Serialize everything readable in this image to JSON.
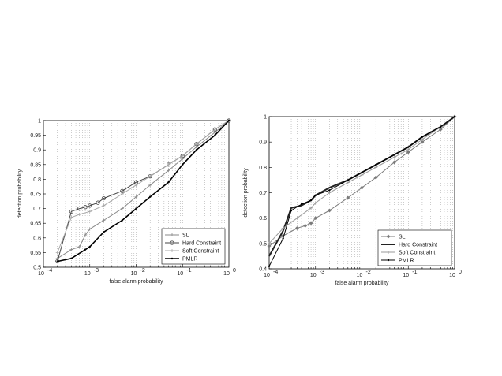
{
  "chart_data": [
    {
      "type": "line",
      "xscale": "log",
      "xlim": [
        0.0001,
        1
      ],
      "ylim": [
        0.5,
        1
      ],
      "xlabel": "false alarm probability",
      "ylabel": "detection probability",
      "x_ticks": [
        0.0001,
        0.001,
        0.01,
        0.1,
        1
      ],
      "x_tick_exponents": [
        "-4",
        "-3",
        "-2",
        "-1",
        "0"
      ],
      "y_ticks": [
        "0.5",
        "0.55",
        "0.6",
        "0.65",
        "0.7",
        "0.75",
        "0.8",
        "0.85",
        "0.9",
        "0.95",
        "1"
      ],
      "grid": "vertical minor",
      "legend": "bottom-right",
      "series": [
        {
          "name": "SL",
          "color": "#8a8a8a",
          "width": 1,
          "marker": "plus",
          "points": [
            [
              0.0002,
              0.53
            ],
            [
              0.0004,
              0.56
            ],
            [
              0.0006,
              0.57
            ],
            [
              0.0008,
              0.61
            ],
            [
              0.001,
              0.63
            ],
            [
              0.002,
              0.66
            ],
            [
              0.005,
              0.7
            ],
            [
              0.01,
              0.74
            ],
            [
              0.02,
              0.78
            ],
            [
              0.05,
              0.83
            ],
            [
              0.1,
              0.87
            ],
            [
              0.2,
              0.91
            ],
            [
              0.5,
              0.96
            ],
            [
              1,
              1
            ]
          ]
        },
        {
          "name": "Hard Constraint",
          "color": "#444444",
          "width": 1,
          "marker": "circle",
          "points": [
            [
              0.0002,
              0.52
            ],
            [
              0.0004,
              0.69
            ],
            [
              0.0006,
              0.7
            ],
            [
              0.0008,
              0.705
            ],
            [
              0.001,
              0.71
            ],
            [
              0.0015,
              0.72
            ],
            [
              0.002,
              0.735
            ],
            [
              0.005,
              0.76
            ],
            [
              0.01,
              0.79
            ],
            [
              0.02,
              0.81
            ],
            [
              0.05,
              0.85
            ],
            [
              0.1,
              0.88
            ],
            [
              0.2,
              0.92
            ],
            [
              0.5,
              0.97
            ],
            [
              1,
              1
            ]
          ]
        },
        {
          "name": "Soft Constraint",
          "color": "#a8a8a8",
          "width": 1,
          "marker": "plus",
          "points": [
            [
              0.0002,
              0.55
            ],
            [
              0.0004,
              0.67
            ],
            [
              0.0006,
              0.68
            ],
            [
              0.001,
              0.69
            ],
            [
              0.002,
              0.71
            ],
            [
              0.005,
              0.75
            ],
            [
              0.01,
              0.78
            ],
            [
              0.02,
              0.81
            ],
            [
              0.05,
              0.85
            ],
            [
              0.1,
              0.88
            ],
            [
              0.2,
              0.92
            ],
            [
              0.5,
              0.97
            ],
            [
              1,
              1
            ]
          ]
        },
        {
          "name": "PMLR",
          "color": "#000000",
          "width": 1.6,
          "marker": "dot",
          "points": [
            [
              0.0002,
              0.52
            ],
            [
              0.0004,
              0.53
            ],
            [
              0.0008,
              0.56
            ],
            [
              0.001,
              0.57
            ],
            [
              0.002,
              0.62
            ],
            [
              0.005,
              0.66
            ],
            [
              0.01,
              0.7
            ],
            [
              0.02,
              0.74
            ],
            [
              0.05,
              0.79
            ],
            [
              0.1,
              0.85
            ],
            [
              0.2,
              0.9
            ],
            [
              0.5,
              0.95
            ],
            [
              1,
              1
            ]
          ]
        }
      ]
    },
    {
      "type": "line",
      "xscale": "log",
      "xlim": [
        0.0001,
        1
      ],
      "ylim": [
        0.4,
        1
      ],
      "xlabel": "false alarm probability",
      "ylabel": "detection probability",
      "x_ticks": [
        0.0001,
        0.001,
        0.01,
        0.1,
        1
      ],
      "x_tick_exponents": [
        "-4",
        "-3",
        "-2",
        "-1",
        "0"
      ],
      "y_ticks": [
        "0.4",
        "0.5",
        "0.6",
        "0.7",
        "0.8",
        "0.9",
        "1"
      ],
      "grid": "vertical minor",
      "legend": "bottom-right",
      "series": [
        {
          "name": "SL",
          "color": "#7a7a7a",
          "width": 1,
          "marker": "diamond",
          "points": [
            [
              0.0001,
              0.49
            ],
            [
              0.0002,
              0.53
            ],
            [
              0.0004,
              0.56
            ],
            [
              0.0006,
              0.57
            ],
            [
              0.0008,
              0.58
            ],
            [
              0.001,
              0.6
            ],
            [
              0.002,
              0.63
            ],
            [
              0.005,
              0.68
            ],
            [
              0.01,
              0.72
            ],
            [
              0.02,
              0.76
            ],
            [
              0.05,
              0.82
            ],
            [
              0.1,
              0.86
            ],
            [
              0.2,
              0.9
            ],
            [
              0.5,
              0.95
            ],
            [
              1,
              1
            ]
          ]
        },
        {
          "name": "Hard Constraint",
          "color": "#222222",
          "width": 2,
          "marker": "none",
          "points": [
            [
              0.0001,
              0.45
            ],
            [
              0.0002,
              0.55
            ],
            [
              0.0003,
              0.64
            ],
            [
              0.0005,
              0.65
            ],
            [
              0.0008,
              0.67
            ],
            [
              0.001,
              0.69
            ],
            [
              0.002,
              0.72
            ],
            [
              0.005,
              0.75
            ],
            [
              0.01,
              0.78
            ],
            [
              0.02,
              0.81
            ],
            [
              0.05,
              0.85
            ],
            [
              0.1,
              0.88
            ],
            [
              0.2,
              0.92
            ],
            [
              0.5,
              0.96
            ],
            [
              1,
              1
            ]
          ]
        },
        {
          "name": "Soft Constraint",
          "color": "#9a9a9a",
          "width": 1,
          "marker": "plus",
          "points": [
            [
              0.0001,
              0.5
            ],
            [
              0.0002,
              0.56
            ],
            [
              0.0004,
              0.6
            ],
            [
              0.0008,
              0.64
            ],
            [
              0.001,
              0.66
            ],
            [
              0.002,
              0.7
            ],
            [
              0.005,
              0.74
            ],
            [
              0.01,
              0.77
            ],
            [
              0.02,
              0.8
            ],
            [
              0.05,
              0.84
            ],
            [
              0.1,
              0.87
            ],
            [
              0.2,
              0.91
            ],
            [
              0.5,
              0.96
            ],
            [
              1,
              1
            ]
          ]
        },
        {
          "name": "PMLR",
          "color": "#000000",
          "width": 1,
          "marker": "dot",
          "points": [
            [
              0.0001,
              0.41
            ],
            [
              0.0002,
              0.52
            ],
            [
              0.0003,
              0.63
            ],
            [
              0.0005,
              0.655
            ],
            [
              0.0008,
              0.67
            ],
            [
              0.001,
              0.69
            ],
            [
              0.002,
              0.71
            ],
            [
              0.005,
              0.75
            ],
            [
              0.01,
              0.78
            ],
            [
              0.02,
              0.81
            ],
            [
              0.05,
              0.85
            ],
            [
              0.1,
              0.88
            ],
            [
              0.2,
              0.92
            ],
            [
              0.5,
              0.96
            ],
            [
              1,
              1
            ]
          ]
        }
      ]
    }
  ]
}
